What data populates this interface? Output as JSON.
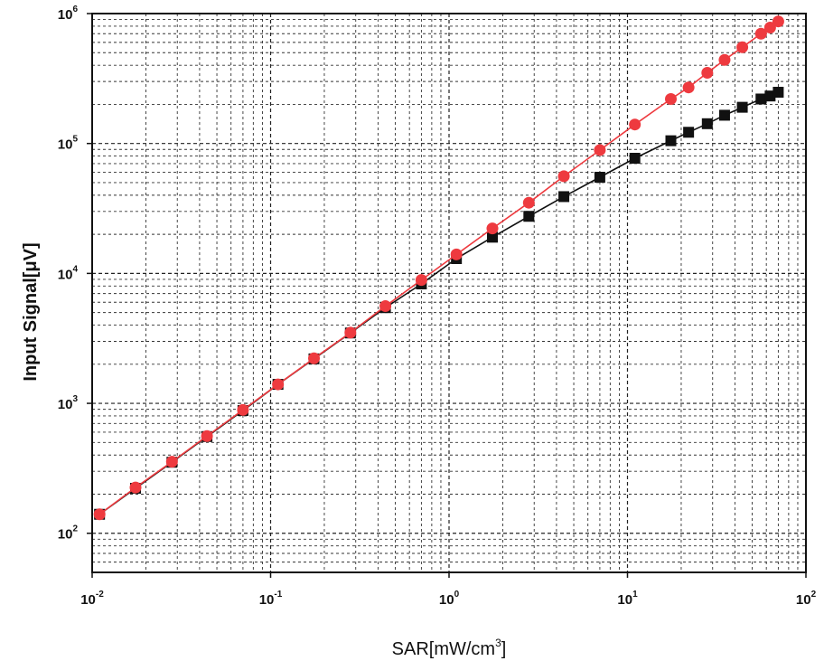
{
  "chart_data": {
    "type": "scatter",
    "xscale": "log",
    "yscale": "log",
    "xlim": [
      0.01,
      100
    ],
    "ylim": [
      50,
      1000000
    ],
    "grid": true,
    "xlabel_base": "SAR[mW/cm",
    "xlabel_sup": "3",
    "xlabel_end": "]",
    "ylabel": "Input Signal[μV]",
    "x_ticks": [
      {
        "base": "10",
        "exp": "-2"
      },
      {
        "base": "10",
        "exp": "-1"
      },
      {
        "base": "10",
        "exp": "0"
      },
      {
        "base": "10",
        "exp": "1"
      },
      {
        "base": "10",
        "exp": "2"
      }
    ],
    "y_ticks": [
      {
        "base": "10",
        "exp": "2"
      },
      {
        "base": "10",
        "exp": "3"
      },
      {
        "base": "10",
        "exp": "4"
      },
      {
        "base": "10",
        "exp": "5"
      },
      {
        "base": "10",
        "exp": "6"
      }
    ],
    "series": [
      {
        "marker": "circle",
        "color": "#ee3a3f",
        "points": [
          [
            0.011,
            140
          ],
          [
            0.0175,
            225
          ],
          [
            0.028,
            355
          ],
          [
            0.044,
            560
          ],
          [
            0.07,
            890
          ],
          [
            0.11,
            1400
          ],
          [
            0.175,
            2220
          ],
          [
            0.28,
            3500
          ],
          [
            0.44,
            5600
          ],
          [
            0.7,
            8900
          ],
          [
            1.1,
            14000
          ],
          [
            1.75,
            22200
          ],
          [
            2.8,
            35000
          ],
          [
            4.4,
            56000
          ],
          [
            7.0,
            89000
          ],
          [
            11.0,
            140000
          ],
          [
            17.5,
            220000
          ],
          [
            22.0,
            270000
          ],
          [
            28.0,
            350000
          ],
          [
            35.0,
            440000
          ],
          [
            44.0,
            550000
          ],
          [
            56.0,
            700000
          ],
          [
            63.0,
            780000
          ],
          [
            70.0,
            870000
          ]
        ]
      },
      {
        "marker": "square",
        "color": "#111111",
        "points": [
          [
            0.011,
            140
          ],
          [
            0.0175,
            222
          ],
          [
            0.028,
            352
          ],
          [
            0.044,
            555
          ],
          [
            0.07,
            880
          ],
          [
            0.11,
            1400
          ],
          [
            0.175,
            2200
          ],
          [
            0.28,
            3480
          ],
          [
            0.44,
            5450
          ],
          [
            0.7,
            8300
          ],
          [
            1.1,
            13000
          ],
          [
            1.75,
            19000
          ],
          [
            2.8,
            27500
          ],
          [
            4.4,
            39000
          ],
          [
            7.0,
            55000
          ],
          [
            11.0,
            77000
          ],
          [
            17.5,
            105000
          ],
          [
            22.0,
            122000
          ],
          [
            28.0,
            142000
          ],
          [
            35.0,
            165000
          ],
          [
            44.0,
            190000
          ],
          [
            56.0,
            220000
          ],
          [
            63.0,
            232000
          ],
          [
            70.0,
            248000
          ]
        ]
      }
    ]
  }
}
